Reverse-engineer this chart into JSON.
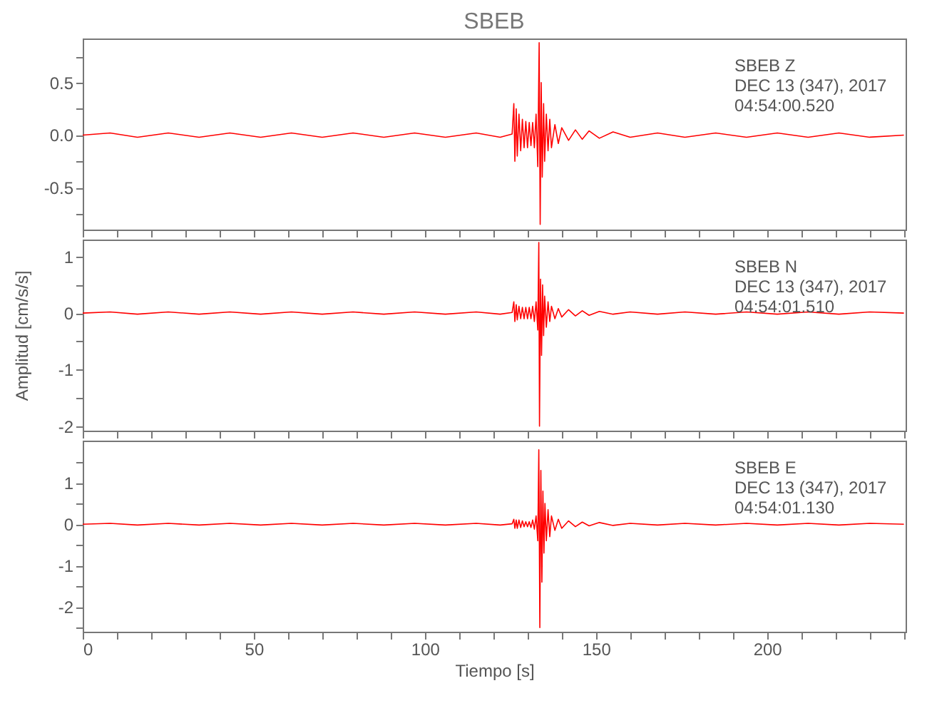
{
  "chart_data": [
    {
      "type": "line",
      "title": "SBEB",
      "tick_labels": "y",
      "xlim": [
        0,
        240.5
      ],
      "ylim": [
        -0.9,
        0.92
      ],
      "xticks": [
        0,
        {
          "value": 10,
          "label": null
        },
        {
          "value": 20,
          "label": null
        },
        {
          "value": 30,
          "label": null
        },
        {
          "value": 40,
          "label": null
        },
        50,
        {
          "value": 60,
          "label": null
        },
        {
          "value": 70,
          "label": null
        },
        {
          "value": 80,
          "label": null
        },
        {
          "value": 90,
          "label": null
        },
        100,
        {
          "value": 110,
          "label": null
        },
        {
          "value": 120,
          "label": null
        },
        {
          "value": 130,
          "label": null
        },
        {
          "value": 140,
          "label": null
        },
        150,
        {
          "value": 160,
          "label": null
        },
        {
          "value": 170,
          "label": null
        },
        {
          "value": 180,
          "label": null
        },
        {
          "value": 190,
          "label": null
        },
        200,
        {
          "value": 210,
          "label": null
        },
        {
          "value": 220,
          "label": null
        },
        {
          "value": 230,
          "label": null
        },
        {
          "value": 240,
          "label": null
        }
      ],
      "yticks": [
        {
          "value": -0.75,
          "label": null
        },
        -0.5,
        {
          "value": -0.25,
          "label": null
        },
        {
          "value": 0,
          "label": "0.0"
        },
        {
          "value": 0.25,
          "label": null
        },
        0.5,
        {
          "value": 0.75,
          "label": null
        }
      ],
      "annotations": [
        "SBEB   Z",
        "DEC 13 (347), 2017",
        "04:54:00.520"
      ],
      "x": [
        0,
        8,
        16,
        25,
        34,
        43,
        52,
        61,
        70,
        79,
        88,
        97,
        106,
        115,
        122,
        125.5,
        126,
        126.3,
        126.7,
        127,
        127.5,
        128,
        128.5,
        129,
        129.5,
        130,
        130.5,
        131,
        131.5,
        132,
        132.5,
        133,
        133.4,
        133.7,
        134,
        134.3,
        134.7,
        135,
        135.5,
        136,
        136.5,
        137,
        138,
        139,
        140,
        142,
        144,
        146,
        148,
        151,
        155,
        160,
        168,
        176,
        185,
        194,
        203,
        212,
        221,
        230,
        240
      ],
      "series": [
        {
          "color": "#ff0000",
          "values": [
            0,
            0.02,
            -0.02,
            0.02,
            -0.02,
            0.02,
            -0.02,
            0.02,
            -0.02,
            0.02,
            -0.02,
            0.02,
            -0.02,
            0.02,
            -0.02,
            0.01,
            0.3,
            -0.25,
            0.25,
            -0.2,
            0.2,
            -0.15,
            0.15,
            -0.12,
            0.13,
            -0.12,
            0.12,
            -0.1,
            0.12,
            -0.12,
            0.2,
            -0.3,
            0.88,
            -0.85,
            0.5,
            -0.4,
            0.3,
            -0.25,
            0.2,
            -0.15,
            0.15,
            -0.12,
            0.1,
            -0.08,
            0.07,
            -0.05,
            0.05,
            -0.04,
            0.04,
            -0.03,
            0.03,
            -0.02,
            0.02,
            -0.02,
            0.02,
            -0.02,
            0.02,
            -0.02,
            0.02,
            -0.02,
            0
          ]
        }
      ]
    },
    {
      "type": "line",
      "tick_labels": "y",
      "ylabel": "Amplitud [cm/s/s]",
      "xlim": [
        0,
        240.5
      ],
      "ylim": [
        -2.08,
        1.3
      ],
      "xticks": [
        0,
        {
          "value": 10,
          "label": null
        },
        {
          "value": 20,
          "label": null
        },
        {
          "value": 30,
          "label": null
        },
        {
          "value": 40,
          "label": null
        },
        50,
        {
          "value": 60,
          "label": null
        },
        {
          "value": 70,
          "label": null
        },
        {
          "value": 80,
          "label": null
        },
        {
          "value": 90,
          "label": null
        },
        100,
        {
          "value": 110,
          "label": null
        },
        {
          "value": 120,
          "label": null
        },
        {
          "value": 130,
          "label": null
        },
        {
          "value": 140,
          "label": null
        },
        150,
        {
          "value": 160,
          "label": null
        },
        {
          "value": 170,
          "label": null
        },
        {
          "value": 180,
          "label": null
        },
        {
          "value": 190,
          "label": null
        },
        200,
        {
          "value": 210,
          "label": null
        },
        {
          "value": 220,
          "label": null
        },
        {
          "value": 230,
          "label": null
        },
        {
          "value": 240,
          "label": null
        }
      ],
      "yticks": [
        -2,
        {
          "value": -1.5,
          "label": null
        },
        -1,
        {
          "value": -0.5,
          "label": null
        },
        0,
        {
          "value": 0.5,
          "label": null
        },
        1
      ],
      "annotations": [
        "SBEB   N",
        "DEC 13 (347), 2017",
        "04:54:01.510"
      ],
      "x": [
        0,
        8,
        16,
        25,
        34,
        43,
        52,
        61,
        70,
        79,
        88,
        97,
        106,
        115,
        122,
        125.5,
        126,
        126.3,
        126.7,
        127,
        127.5,
        128,
        128.5,
        129,
        129.5,
        130,
        130.5,
        131,
        131.5,
        132,
        132.5,
        133,
        133.3,
        133.5,
        133.8,
        134.1,
        134.4,
        134.7,
        135,
        135.5,
        136,
        136.5,
        137,
        138,
        139,
        140,
        142,
        144,
        146,
        148,
        151,
        155,
        160,
        168,
        176,
        185,
        194,
        203,
        212,
        221,
        230,
        240
      ],
      "series": [
        {
          "color": "#ff0000",
          "values": [
            0,
            0.02,
            -0.02,
            0.02,
            -0.02,
            0.02,
            -0.02,
            0.02,
            -0.02,
            0.02,
            -0.02,
            0.02,
            -0.02,
            0.02,
            -0.02,
            0.01,
            0.2,
            -0.15,
            0.15,
            -0.12,
            0.12,
            -0.1,
            0.1,
            -0.1,
            0.1,
            -0.1,
            0.1,
            -0.1,
            0.12,
            -0.15,
            0.2,
            -0.3,
            1.25,
            -2.0,
            0.6,
            -0.75,
            0.5,
            -0.4,
            0.3,
            -0.25,
            0.2,
            -0.15,
            0.12,
            -0.1,
            0.08,
            -0.07,
            0.06,
            -0.05,
            0.04,
            -0.04,
            0.03,
            -0.02,
            0.02,
            -0.02,
            0.02,
            -0.02,
            0.02,
            -0.02,
            0.02,
            -0.02,
            0.02,
            0
          ]
        }
      ]
    },
    {
      "type": "line",
      "xlabel": "Tiempo [s]",
      "xlim": [
        0,
        240.5
      ],
      "ylim": [
        -2.6,
        2.02
      ],
      "xticks": [
        0,
        {
          "value": 10,
          "label": null
        },
        {
          "value": 20,
          "label": null
        },
        {
          "value": 30,
          "label": null
        },
        {
          "value": 40,
          "label": null
        },
        50,
        {
          "value": 60,
          "label": null
        },
        {
          "value": 70,
          "label": null
        },
        {
          "value": 80,
          "label": null
        },
        {
          "value": 90,
          "label": null
        },
        100,
        {
          "value": 110,
          "label": null
        },
        {
          "value": 120,
          "label": null
        },
        {
          "value": 130,
          "label": null
        },
        {
          "value": 140,
          "label": null
        },
        150,
        {
          "value": 160,
          "label": null
        },
        {
          "value": 170,
          "label": null
        },
        {
          "value": 180,
          "label": null
        },
        {
          "value": 190,
          "label": null
        },
        200,
        {
          "value": 210,
          "label": null
        },
        {
          "value": 220,
          "label": null
        },
        {
          "value": 230,
          "label": null
        },
        {
          "value": 240,
          "label": null
        }
      ],
      "yticks": [
        {
          "value": -2.5,
          "label": null
        },
        -2,
        {
          "value": -1.5,
          "label": null
        },
        -1,
        {
          "value": -0.5,
          "label": null
        },
        0,
        {
          "value": 0.5,
          "label": null
        },
        1,
        {
          "value": 1.5,
          "label": null
        }
      ],
      "annotations": [
        "SBEB   E",
        "DEC 13 (347), 2017",
        "04:54:01.130"
      ],
      "x": [
        0,
        8,
        16,
        25,
        34,
        43,
        52,
        61,
        70,
        79,
        88,
        97,
        106,
        115,
        122,
        125.5,
        126,
        126.3,
        126.7,
        127,
        127.5,
        128,
        128.5,
        129,
        129.5,
        130,
        130.5,
        131,
        131.5,
        132,
        132.5,
        133,
        133.3,
        133.6,
        133.9,
        134.2,
        134.5,
        134.8,
        135.1,
        135.5,
        136,
        136.5,
        137,
        138,
        139,
        140,
        142,
        144,
        146,
        148,
        151,
        155,
        160,
        168,
        176,
        185,
        194,
        203,
        212,
        221,
        230,
        240
      ],
      "series": [
        {
          "color": "#ff0000",
          "values": [
            0,
            0.02,
            -0.02,
            0.02,
            -0.02,
            0.02,
            -0.02,
            0.02,
            -0.02,
            0.02,
            -0.02,
            0.02,
            -0.02,
            0.02,
            -0.02,
            0.01,
            0.12,
            -0.1,
            0.1,
            -0.1,
            0.1,
            -0.08,
            0.08,
            -0.06,
            0.06,
            -0.06,
            0.06,
            -0.08,
            0.1,
            -0.12,
            0.2,
            -0.4,
            1.8,
            -2.5,
            1.3,
            -1.4,
            0.8,
            -0.7,
            0.5,
            -0.4,
            0.35,
            -0.3,
            0.2,
            -0.15,
            0.12,
            -0.1,
            0.08,
            -0.06,
            0.05,
            -0.04,
            0.04,
            -0.03,
            0.02,
            -0.02,
            0.02,
            -0.02,
            0.02,
            -0.02,
            0.02,
            -0.02,
            0.02,
            0
          ]
        }
      ]
    }
  ]
}
